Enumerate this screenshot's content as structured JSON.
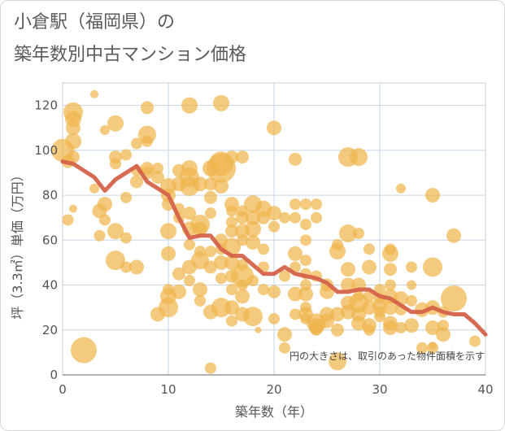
{
  "title_line1": "小倉駅（福岡県）の",
  "title_line2": "築年数別中古マンション価格",
  "chart_data": {
    "type": "scatter",
    "xlabel": "築年数（年）",
    "ylabel": "坪（3.3㎡）単価（万円）",
    "xlim": [
      0,
      40
    ],
    "ylim": [
      0,
      130
    ],
    "xticks": [
      0,
      10,
      20,
      30,
      40
    ],
    "yticks": [
      0,
      20,
      40,
      60,
      80,
      100,
      120
    ],
    "grid": true,
    "annotation": "円の大きさは、取引のあった物件面積を示す",
    "colors": {
      "bubble": "#f0b54e",
      "line": "#d4624a",
      "grid": "#c5d6e3"
    },
    "series": [
      {
        "type": "scatter",
        "points": [
          [
            0,
            100,
            14
          ],
          [
            0.5,
            95,
            8
          ],
          [
            1,
            117,
            12
          ],
          [
            1,
            114,
            10
          ],
          [
            1,
            110,
            9
          ],
          [
            1,
            104,
            10
          ],
          [
            1,
            97,
            8
          ],
          [
            0.5,
            69,
            7
          ],
          [
            1,
            74,
            5
          ],
          [
            2,
            11,
            16
          ],
          [
            3,
            125,
            5
          ],
          [
            3,
            83,
            6
          ],
          [
            3.5,
            73,
            9
          ],
          [
            3.5,
            62,
            7
          ],
          [
            4,
            109,
            6
          ],
          [
            4,
            76,
            9
          ],
          [
            4,
            69,
            7
          ],
          [
            5,
            112,
            10
          ],
          [
            5,
            97,
            8
          ],
          [
            5,
            94,
            7
          ],
          [
            5,
            64,
            10
          ],
          [
            5,
            51,
            12
          ],
          [
            6,
            98,
            7
          ],
          [
            6,
            79,
            7
          ],
          [
            6,
            61,
            7
          ],
          [
            6,
            48,
            7
          ],
          [
            7,
            103,
            7
          ],
          [
            7,
            91,
            7
          ],
          [
            7,
            86,
            8
          ],
          [
            7,
            48,
            9
          ],
          [
            8,
            119,
            8
          ],
          [
            8,
            107,
            11
          ],
          [
            8,
            104,
            7
          ],
          [
            8,
            92,
            8
          ],
          [
            8,
            90,
            8
          ],
          [
            9,
            92,
            7
          ],
          [
            9,
            88,
            8
          ],
          [
            9,
            27,
            9
          ],
          [
            10,
            84,
            10
          ],
          [
            10,
            80,
            9
          ],
          [
            10,
            76,
            8
          ],
          [
            10,
            64,
            10
          ],
          [
            10,
            54,
            9
          ],
          [
            10,
            38,
            7
          ],
          [
            10,
            35,
            10
          ],
          [
            10,
            30,
            12
          ],
          [
            11,
            91,
            8
          ],
          [
            11,
            85,
            9
          ],
          [
            11,
            74,
            7
          ],
          [
            11,
            70,
            7
          ],
          [
            11,
            45,
            8
          ],
          [
            11,
            37,
            9
          ],
          [
            12,
            120,
            10
          ],
          [
            12,
            92,
            10
          ],
          [
            12,
            88,
            12
          ],
          [
            12,
            84,
            12
          ],
          [
            12,
            72,
            8
          ],
          [
            12,
            65,
            9
          ],
          [
            12,
            58,
            7
          ],
          [
            12,
            48,
            9
          ],
          [
            12,
            42,
            7
          ],
          [
            13,
            85,
            9
          ],
          [
            13,
            67,
            12
          ],
          [
            13,
            65,
            9
          ],
          [
            13,
            55,
            7
          ],
          [
            13,
            51,
            11
          ],
          [
            13,
            38,
            9
          ],
          [
            13,
            33,
            7
          ],
          [
            14,
            92,
            10
          ],
          [
            14,
            85,
            8
          ],
          [
            14,
            79,
            8
          ],
          [
            14,
            72,
            7
          ],
          [
            14,
            55,
            7
          ],
          [
            14,
            48,
            8
          ],
          [
            14,
            28,
            9
          ],
          [
            14,
            3,
            7
          ],
          [
            15,
            121,
            10
          ],
          [
            15,
            94,
            15
          ],
          [
            15,
            92,
            18
          ],
          [
            15,
            84,
            9
          ],
          [
            15,
            60,
            8
          ],
          [
            15,
            56,
            7
          ],
          [
            15,
            50,
            9
          ],
          [
            15,
            43,
            7
          ],
          [
            15,
            30,
            12
          ],
          [
            16,
            97,
            8
          ],
          [
            16,
            76,
            9
          ],
          [
            16,
            73,
            7
          ],
          [
            16,
            68,
            7
          ],
          [
            16,
            64,
            8
          ],
          [
            16,
            57,
            11
          ],
          [
            16,
            50,
            9
          ],
          [
            16,
            44,
            8
          ],
          [
            16,
            38,
            7
          ],
          [
            16,
            30,
            9
          ],
          [
            16,
            24,
            7
          ],
          [
            17,
            97,
            8
          ],
          [
            17,
            73,
            7
          ],
          [
            17,
            70,
            8
          ],
          [
            17,
            64,
            9
          ],
          [
            17,
            60,
            7
          ],
          [
            17,
            49,
            7
          ],
          [
            17,
            44,
            14
          ],
          [
            17,
            40,
            7
          ],
          [
            17,
            35,
            9
          ],
          [
            17,
            27,
            9
          ],
          [
            18,
            76,
            11
          ],
          [
            18,
            70,
            9
          ],
          [
            18,
            65,
            10
          ],
          [
            18,
            59,
            9
          ],
          [
            18,
            42,
            7
          ],
          [
            18,
            26,
            12
          ],
          [
            18.5,
            20,
            4
          ],
          [
            19,
            74,
            10
          ],
          [
            19,
            70,
            8
          ],
          [
            19,
            56,
            7
          ],
          [
            19,
            48,
            7
          ],
          [
            19,
            38,
            7
          ],
          [
            20,
            110,
            9
          ],
          [
            20,
            72,
            9
          ],
          [
            20,
            66,
            7
          ],
          [
            20,
            37,
            8
          ],
          [
            20,
            25,
            7
          ],
          [
            21,
            70,
            7
          ],
          [
            21,
            44,
            7
          ],
          [
            21,
            18,
            9
          ],
          [
            21,
            12,
            7
          ],
          [
            22,
            96,
            8
          ],
          [
            22,
            76,
            7
          ],
          [
            22,
            70,
            7
          ],
          [
            22,
            54,
            9
          ],
          [
            22,
            48,
            7
          ],
          [
            22,
            36,
            9
          ],
          [
            22,
            27,
            7
          ],
          [
            23,
            76,
            7
          ],
          [
            23,
            67,
            7
          ],
          [
            23,
            60,
            7
          ],
          [
            23,
            51,
            7
          ],
          [
            23,
            45,
            7
          ],
          [
            23,
            40,
            7
          ],
          [
            23,
            36,
            9
          ],
          [
            23,
            30,
            7
          ],
          [
            23,
            27,
            9
          ],
          [
            23,
            25,
            7
          ],
          [
            24,
            76,
            7
          ],
          [
            24,
            70,
            7
          ],
          [
            24,
            44,
            7
          ],
          [
            24,
            23,
            12
          ],
          [
            24,
            22,
            9
          ],
          [
            24,
            21,
            9
          ],
          [
            24,
            20,
            7
          ],
          [
            25,
            40,
            8
          ],
          [
            25,
            37,
            9
          ],
          [
            25,
            27,
            9
          ],
          [
            25,
            24,
            9
          ],
          [
            26,
            58,
            7
          ],
          [
            26,
            55,
            10
          ],
          [
            26,
            27,
            9
          ],
          [
            26,
            20,
            8
          ],
          [
            26,
            6,
            11
          ],
          [
            27,
            97,
            12
          ],
          [
            27,
            63,
            11
          ],
          [
            27,
            47,
            9
          ],
          [
            27,
            40,
            9
          ],
          [
            27,
            32,
            9
          ],
          [
            27,
            28,
            9
          ],
          [
            28,
            97,
            11
          ],
          [
            28,
            63,
            7
          ],
          [
            28,
            40,
            9
          ],
          [
            28,
            35,
            7
          ],
          [
            28,
            32,
            12
          ],
          [
            28,
            27,
            9
          ],
          [
            28,
            23,
            9
          ],
          [
            29,
            56,
            7
          ],
          [
            29,
            48,
            9
          ],
          [
            29,
            35,
            7
          ],
          [
            29,
            30,
            9
          ],
          [
            29,
            22,
            9
          ],
          [
            29,
            20,
            7
          ],
          [
            30,
            38,
            7
          ],
          [
            30,
            34,
            7
          ],
          [
            30,
            31,
            9
          ],
          [
            30,
            28,
            7
          ],
          [
            30,
            26,
            7
          ],
          [
            31,
            56,
            7
          ],
          [
            31,
            54,
            10
          ],
          [
            31,
            47,
            8
          ],
          [
            31,
            40,
            7
          ],
          [
            31,
            35,
            9
          ],
          [
            31,
            30,
            9
          ],
          [
            31,
            23,
            9
          ],
          [
            31,
            21,
            9
          ],
          [
            32,
            83,
            6
          ],
          [
            32,
            34,
            9
          ],
          [
            32,
            29,
            7
          ],
          [
            32,
            21,
            7
          ],
          [
            33,
            48,
            7
          ],
          [
            33,
            40,
            6
          ],
          [
            33,
            33,
            7
          ],
          [
            33,
            22,
            9
          ],
          [
            34,
            29,
            9
          ],
          [
            34,
            12,
            7
          ],
          [
            35,
            80,
            9
          ],
          [
            35,
            48,
            12
          ],
          [
            35,
            30,
            9
          ],
          [
            35,
            21,
            9
          ],
          [
            35,
            13,
            5
          ],
          [
            35,
            12,
            7
          ],
          [
            36,
            22,
            7
          ],
          [
            36,
            18,
            9
          ],
          [
            36,
            28,
            7
          ],
          [
            37,
            62,
            9
          ],
          [
            37,
            34,
            16
          ],
          [
            39,
            15,
            7
          ]
        ]
      },
      {
        "type": "line",
        "x": [
          0,
          1,
          2,
          3,
          4,
          5,
          6,
          7,
          8,
          9,
          10,
          11,
          12,
          13,
          14,
          15,
          16,
          17,
          18,
          19,
          20,
          21,
          22,
          23,
          24,
          25,
          26,
          27,
          28,
          29,
          30,
          31,
          32,
          33,
          34,
          35,
          36,
          37,
          38,
          39,
          40
        ],
        "y": [
          95,
          94,
          91,
          88,
          82,
          87,
          90,
          93,
          86,
          83,
          80,
          70,
          61,
          62,
          62,
          56,
          53,
          53,
          49,
          45,
          45,
          48,
          45,
          44,
          43,
          41,
          37,
          37,
          38,
          38,
          35,
          34,
          31,
          28,
          28,
          30,
          28,
          27,
          27,
          23,
          18
        ]
      }
    ]
  }
}
